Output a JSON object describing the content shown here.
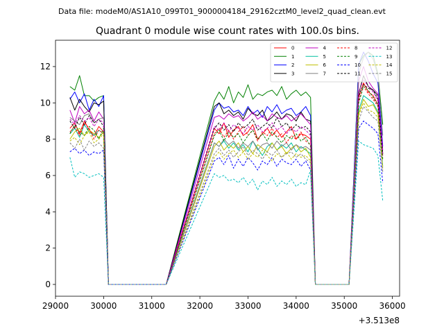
{
  "figure": {
    "suptitle": "Data file: modeM0/AS1A10_099T01_9000004184_29162cztM0_level2_quad_clean.evt",
    "title": "Quadrant 0 module wise count rates with 100.0s bins.",
    "x_offset_label": "+3.513e8"
  },
  "chart_data": {
    "type": "line",
    "title": "Quadrant 0 module wise count rates with 100.0s bins.",
    "xlabel": "",
    "ylabel": "",
    "x_offset": "+3.513e8",
    "xlim": [
      29000,
      36150
    ],
    "ylim": [
      -0.65,
      13.45
    ],
    "xticks": [
      29000,
      30000,
      31000,
      32000,
      33000,
      34000,
      35000,
      36000
    ],
    "xtick_labels": [
      "29000",
      "30000",
      "31000",
      "32000",
      "33000",
      "34000",
      "35000",
      "36000"
    ],
    "yticks": [
      0,
      2,
      4,
      6,
      8,
      10,
      12
    ],
    "ytick_labels": [
      "0",
      "2",
      "4",
      "6",
      "8",
      "10",
      "12"
    ],
    "legend_position": "top-right",
    "segments": [
      {
        "name": "gti-1",
        "x_start": 29300,
        "n_on": 8,
        "n_off": 13
      },
      {
        "name": "gti-2",
        "x_start": 32300,
        "n_on": 21,
        "n_off": 8
      },
      {
        "name": "gti-3",
        "x_start": 35300,
        "n_on": 6,
        "n_off": 0
      }
    ],
    "series": [
      {
        "name": "0",
        "color": "#ff0000",
        "dash": "solid",
        "values": [
          8.6,
          8.9,
          8.3,
          9.0,
          8.5,
          8.2,
          8.7,
          8.4,
          8.6,
          8.3,
          8.9,
          8.1,
          8.5,
          8.7,
          8.2,
          8.4,
          8.8,
          8.0,
          8.3,
          8.6,
          8.2,
          8.5,
          8.1,
          8.4,
          8.7,
          8.0,
          8.3,
          8.2,
          8.0,
          10.3,
          11.1,
          10.6,
          10.4,
          9.9,
          7.1
        ]
      },
      {
        "name": "1",
        "color": "#008000",
        "dash": "solid",
        "values": [
          10.9,
          10.7,
          11.5,
          10.4,
          10.4,
          10.1,
          10.3,
          10.4,
          10.1,
          10.6,
          10.2,
          10.9,
          10.0,
          10.6,
          10.3,
          11.0,
          10.2,
          10.5,
          10.4,
          10.6,
          10.7,
          10.4,
          10.9,
          10.2,
          10.5,
          10.7,
          10.4,
          10.6,
          10.3,
          12.1,
          12.6,
          12.8,
          12.6,
          11.6,
          8.8
        ]
      },
      {
        "name": "2",
        "color": "#0000ff",
        "dash": "solid",
        "values": [
          10.2,
          10.6,
          10.0,
          10.5,
          9.6,
          10.2,
          9.8,
          10.4,
          9.6,
          10.0,
          9.7,
          9.8,
          9.5,
          9.6,
          9.3,
          9.8,
          9.4,
          9.6,
          9.2,
          9.8,
          9.5,
          9.9,
          9.4,
          9.6,
          9.7,
          9.3,
          9.5,
          9.8,
          9.3,
          12.1,
          12.8,
          12.3,
          11.6,
          11.1,
          7.6
        ]
      },
      {
        "name": "3",
        "color": "#000000",
        "dash": "solid",
        "values": [
          10.3,
          9.6,
          10.2,
          9.8,
          9.5,
          10.0,
          9.9,
          10.1,
          9.8,
          10.0,
          9.4,
          9.6,
          9.3,
          9.5,
          9.1,
          9.7,
          9.4,
          9.3,
          9.6,
          9.0,
          9.2,
          9.5,
          9.1,
          9.4,
          9.3,
          9.0,
          9.5,
          9.1,
          9.0,
          10.5,
          11.5,
          10.9,
          10.7,
          10.4,
          7.2
        ]
      },
      {
        "name": "4",
        "color": "#bf00bf",
        "dash": "solid",
        "values": [
          9.6,
          8.9,
          9.8,
          9.4,
          9.6,
          9.0,
          9.5,
          9.1,
          9.2,
          9.3,
          9.1,
          9.4,
          9.2,
          9.3,
          9.0,
          9.2,
          9.5,
          9.1,
          9.3,
          9.0,
          9.4,
          9.2,
          9.1,
          9.3,
          9.0,
          9.2,
          9.4,
          9.1,
          8.8,
          11.2,
          12.0,
          11.2,
          10.8,
          10.5,
          7.4
        ]
      },
      {
        "name": "5",
        "color": "#00bf9f",
        "dash": "solid",
        "values": [
          8.3,
          8.6,
          8.1,
          8.8,
          8.4,
          8.2,
          8.5,
          8.3,
          7.8,
          7.6,
          7.9,
          7.5,
          7.8,
          7.4,
          7.7,
          7.3,
          7.9,
          7.5,
          7.1,
          7.6,
          7.8,
          7.4,
          7.7,
          7.5,
          7.8,
          7.3,
          7.6,
          7.4,
          7.2,
          9.6,
          10.4,
          10.2,
          10.0,
          9.5,
          6.5
        ]
      },
      {
        "name": "6",
        "color": "#bfbf00",
        "dash": "solid",
        "values": [
          8.0,
          8.4,
          8.6,
          8.2,
          8.5,
          8.3,
          8.1,
          8.4,
          7.6,
          7.9,
          7.4,
          7.7,
          7.5,
          7.8,
          7.3,
          7.6,
          7.2,
          7.7,
          7.5,
          7.3,
          7.8,
          7.4,
          7.6,
          7.2,
          7.5,
          7.7,
          7.3,
          7.5,
          7.0,
          9.4,
          10.2,
          9.8,
          9.9,
          9.4,
          6.4
        ]
      },
      {
        "name": "7",
        "color": "#7f7f7f",
        "dash": "solid",
        "values": [
          9.2,
          9.0,
          8.8,
          9.3,
          9.4,
          8.9,
          9.1,
          9.2,
          7.8,
          7.6,
          8.0,
          7.7,
          7.9,
          7.5,
          7.8,
          7.6,
          7.9,
          7.4,
          7.7,
          7.8,
          7.5,
          7.9,
          7.6,
          7.8,
          7.4,
          7.7,
          7.5,
          7.6,
          7.4,
          11.6,
          12.5,
          12.8,
          12.4,
          11.5,
          8.2
        ]
      },
      {
        "name": "8",
        "color": "#ff0000",
        "dash": "dashed",
        "values": [
          8.4,
          8.7,
          8.2,
          8.9,
          8.6,
          8.0,
          8.5,
          8.3,
          8.3,
          8.6,
          8.1,
          8.5,
          8.0,
          8.4,
          8.7,
          8.2,
          8.5,
          7.9,
          8.4,
          8.2,
          8.6,
          8.1,
          8.3,
          7.8,
          8.2,
          8.0,
          8.4,
          7.9,
          7.7,
          10.1,
          10.9,
          10.5,
          10.2,
          9.8,
          7.0
        ]
      },
      {
        "name": "9",
        "color": "#008000",
        "dash": "dashed",
        "values": [
          8.3,
          8.8,
          8.4,
          8.2,
          8.7,
          8.5,
          8.0,
          8.6,
          8.2,
          8.5,
          7.9,
          8.4,
          8.1,
          8.3,
          7.8,
          8.2,
          8.5,
          8.0,
          8.3,
          7.9,
          8.4,
          8.1,
          7.8,
          8.2,
          8.0,
          8.3,
          7.9,
          8.1,
          7.6,
          10.0,
          10.9,
          10.7,
          10.3,
          9.9,
          6.9
        ]
      },
      {
        "name": "10",
        "color": "#0000ff",
        "dash": "dashed",
        "values": [
          7.3,
          7.5,
          7.2,
          7.4,
          7.1,
          7.3,
          7.2,
          7.4,
          6.8,
          7.0,
          6.6,
          7.1,
          6.4,
          6.9,
          6.5,
          7.0,
          6.7,
          6.3,
          6.8,
          6.6,
          7.0,
          6.5,
          6.9,
          6.7,
          6.6,
          6.9,
          6.5,
          6.8,
          6.3,
          8.6,
          9.0,
          8.8,
          8.6,
          8.3,
          5.6
        ]
      },
      {
        "name": "11",
        "color": "#000000",
        "dash": "dashed",
        "values": [
          9.0,
          8.6,
          9.2,
          8.8,
          9.3,
          8.9,
          9.1,
          8.7,
          8.6,
          8.9,
          8.5,
          8.8,
          8.4,
          8.9,
          8.6,
          8.8,
          9.1,
          8.5,
          8.7,
          8.9,
          8.6,
          9.2,
          8.7,
          8.9,
          8.5,
          8.8,
          8.6,
          8.7,
          8.4,
          10.4,
          11.0,
          10.8,
          10.7,
          10.2,
          7.2
        ]
      },
      {
        "name": "12",
        "color": "#bf00bf",
        "dash": "dashed",
        "values": [
          9.1,
          8.8,
          9.3,
          9.0,
          9.2,
          8.7,
          9.1,
          8.9,
          8.7,
          8.5,
          8.9,
          8.4,
          8.8,
          8.6,
          8.3,
          8.7,
          8.5,
          8.8,
          8.4,
          8.6,
          8.9,
          8.5,
          8.7,
          8.3,
          8.6,
          8.4,
          8.7,
          8.5,
          8.2,
          10.6,
          11.3,
          10.9,
          10.6,
          10.1,
          7.1
        ]
      },
      {
        "name": "13",
        "color": "#00bfbf",
        "dash": "dashed",
        "values": [
          7.0,
          5.9,
          6.2,
          6.1,
          5.9,
          6.0,
          6.1,
          5.9,
          6.1,
          5.9,
          6.0,
          5.7,
          5.8,
          5.6,
          5.9,
          5.5,
          5.8,
          5.2,
          5.7,
          5.5,
          5.9,
          5.4,
          5.7,
          5.5,
          5.8,
          5.4,
          5.6,
          5.5,
          6.3,
          7.9,
          7.7,
          7.6,
          7.5,
          7.1,
          4.6
        ]
      },
      {
        "name": "14",
        "color": "#bfbf00",
        "dash": "dashed",
        "values": [
          7.9,
          8.1,
          7.7,
          8.2,
          8.4,
          7.8,
          8.0,
          8.3,
          7.0,
          7.3,
          6.9,
          7.2,
          7.4,
          7.0,
          7.3,
          6.9,
          7.2,
          7.0,
          7.4,
          7.1,
          6.8,
          7.2,
          7.0,
          7.3,
          6.9,
          7.2,
          7.0,
          7.1,
          6.8,
          9.3,
          10.0,
          9.6,
          9.5,
          9.2,
          6.3
        ]
      },
      {
        "name": "15",
        "color": "#7f7f7f",
        "dash": "dashed",
        "values": [
          7.8,
          7.5,
          8.0,
          7.4,
          7.9,
          7.6,
          7.8,
          7.5,
          7.2,
          7.5,
          7.1,
          7.4,
          7.0,
          7.3,
          7.6,
          7.1,
          7.4,
          7.2,
          6.9,
          7.3,
          7.1,
          7.4,
          7.0,
          7.2,
          7.3,
          7.0,
          7.2,
          6.9,
          6.7,
          9.0,
          9.8,
          9.5,
          9.2,
          9.0,
          6.2
        ]
      }
    ]
  }
}
